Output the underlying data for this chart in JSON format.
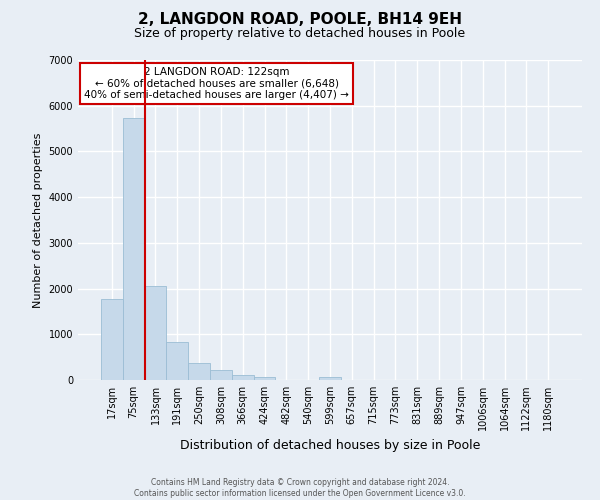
{
  "title": "2, LANGDON ROAD, POOLE, BH14 9EH",
  "subtitle": "Size of property relative to detached houses in Poole",
  "xlabel": "Distribution of detached houses by size in Poole",
  "ylabel": "Number of detached properties",
  "bar_labels": [
    "17sqm",
    "75sqm",
    "133sqm",
    "191sqm",
    "250sqm",
    "308sqm",
    "366sqm",
    "424sqm",
    "482sqm",
    "540sqm",
    "599sqm",
    "657sqm",
    "715sqm",
    "773sqm",
    "831sqm",
    "889sqm",
    "947sqm",
    "1006sqm",
    "1064sqm",
    "1122sqm",
    "1180sqm"
  ],
  "bar_values": [
    1780,
    5740,
    2050,
    830,
    365,
    220,
    100,
    60,
    0,
    0,
    60,
    0,
    0,
    0,
    0,
    0,
    0,
    0,
    0,
    0,
    0
  ],
  "bar_color": "#c6d9ea",
  "bar_edge_color": "#9bbdd4",
  "property_line_x": 1.5,
  "property_line_color": "#cc0000",
  "annotation_title": "2 LANGDON ROAD: 122sqm",
  "annotation_line1": "← 60% of detached houses are smaller (6,648)",
  "annotation_line2": "40% of semi-detached houses are larger (4,407) →",
  "ylim": [
    0,
    7000
  ],
  "yticks": [
    0,
    1000,
    2000,
    3000,
    4000,
    5000,
    6000,
    7000
  ],
  "footer_line1": "Contains HM Land Registry data © Crown copyright and database right 2024.",
  "footer_line2": "Contains public sector information licensed under the Open Government Licence v3.0.",
  "bg_color": "#e8eef5",
  "grid_color": "#ffffff",
  "title_fontsize": 11,
  "subtitle_fontsize": 9,
  "xlabel_fontsize": 9,
  "ylabel_fontsize": 8,
  "tick_fontsize": 7,
  "annotation_fontsize": 7.5,
  "footer_fontsize": 5.5
}
